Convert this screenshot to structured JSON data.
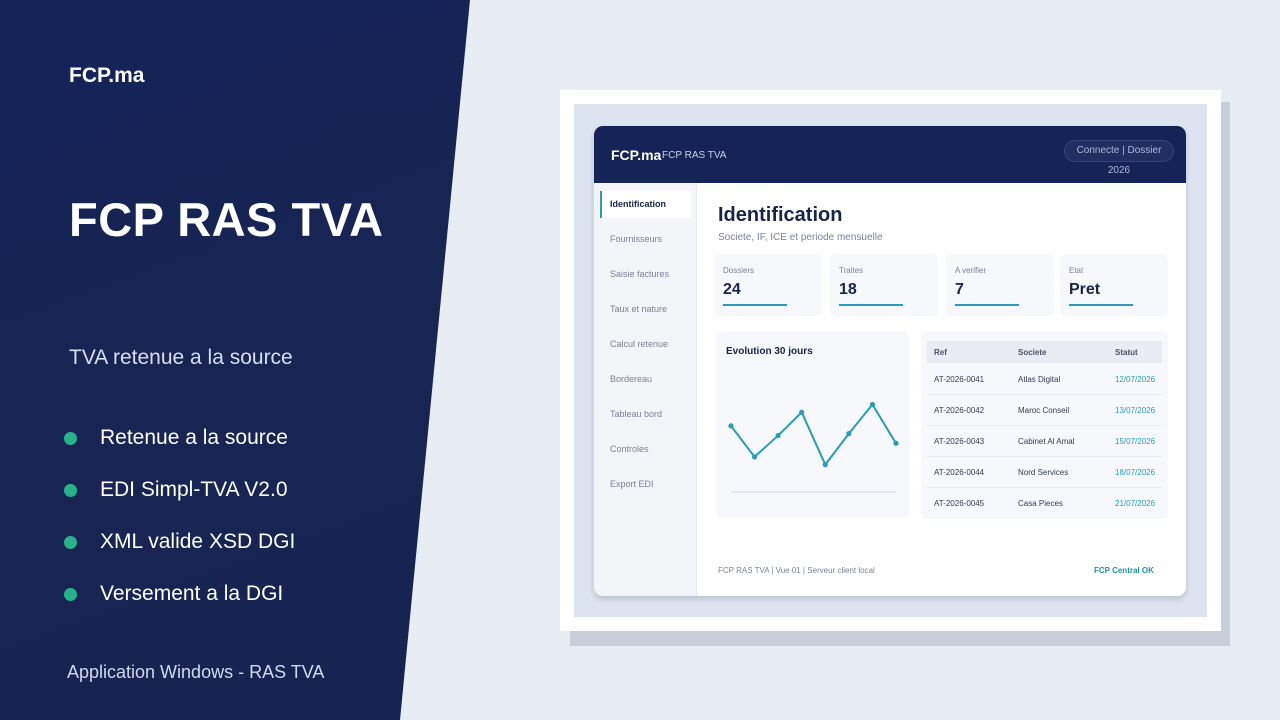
{
  "promo": {
    "brand": "FCP.ma",
    "title": "FCP RAS TVA",
    "subtitle": "TVA retenue a la source",
    "features": [
      "Retenue a la source",
      "EDI Simpl-TVA V2.0",
      "XML valide XSD DGI",
      "Versement a la DGI"
    ],
    "footer": "Application Windows - RAS TVA",
    "accent_color": "#27b38a",
    "panel_color": "#142457"
  },
  "app": {
    "logo": "FCP.ma",
    "app_name": "FCP RAS TVA",
    "status": "Connecte | Dossier 2026",
    "nav": [
      "Identification",
      "Fournisseurs",
      "Saisie factures",
      "Taux et nature",
      "Calcul retenue",
      "Bordereau",
      "Tableau bord",
      "Controles",
      "Export EDI"
    ],
    "active_nav": "Identification",
    "title": "Identification",
    "subtitle": "Societe, IF, ICE et periode mensuelle",
    "cards": [
      {
        "label": "Dossiers",
        "value": "24"
      },
      {
        "label": "Traites",
        "value": "18"
      },
      {
        "label": "A verifier",
        "value": "7"
      },
      {
        "label": "Etat",
        "value": "Pret"
      }
    ],
    "chart": {
      "title": "Evolution 30 jours"
    },
    "table": {
      "headers": [
        "Ref",
        "Societe",
        "Statut"
      ],
      "rows": [
        [
          "AT-2026-0041",
          "Atlas Digital",
          "12/07/2026"
        ],
        [
          "AT-2026-0042",
          "Maroc Conseil",
          "13/07/2026"
        ],
        [
          "AT-2026-0043",
          "Cabinet Al Amal",
          "15/07/2026"
        ],
        [
          "AT-2026-0044",
          "Nord Services",
          "18/07/2026"
        ],
        [
          "AT-2026-0045",
          "Casa Pieces",
          "21/07/2026"
        ]
      ]
    },
    "footer_left": "FCP RAS TVA | Vue 01 | Serveur client local",
    "footer_right": "FCP Central OK",
    "accent_color": "#2a9cb6"
  },
  "chart_data": {
    "type": "line",
    "title": "Evolution 30 jours",
    "series": [
      {
        "values": [
          62,
          30,
          52,
          76,
          22,
          54,
          84,
          44
        ]
      }
    ],
    "ylim": [
      0,
      100
    ],
    "grid": false
  }
}
